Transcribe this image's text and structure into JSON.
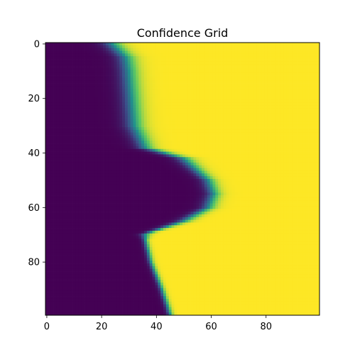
{
  "chart_data": {
    "type": "heatmap",
    "title": "Confidence Grid",
    "xlabel": "",
    "ylabel": "",
    "grid": false,
    "x_ticks": [
      0,
      20,
      40,
      60,
      80
    ],
    "y_ticks": [
      0,
      20,
      40,
      60,
      80
    ],
    "x_range": [
      -0.5,
      99.5
    ],
    "y_range": [
      -0.5,
      99.5
    ],
    "y_inverted": true,
    "value_range": [
      0,
      1
    ],
    "colormap": "viridis",
    "colormap_stops": [
      "#440154",
      "#3b528b",
      "#21918c",
      "#5ec962",
      "#fde725"
    ],
    "boundary": {
      "description": "column index where the field transitions from 0 (dark) to 1 (yellow), per row",
      "rows": [
        0,
        5,
        10,
        20,
        30,
        38,
        42,
        50,
        55,
        60,
        65,
        69,
        70,
        72,
        80,
        90,
        99
      ],
      "x": [
        24,
        29,
        30,
        31,
        32,
        36,
        50,
        59,
        61,
        59,
        50,
        38,
        36,
        36,
        38,
        42,
        45
      ],
      "softness": [
        2.0,
        2.0,
        2.0,
        2.0,
        2.0,
        1.8,
        1.8,
        1.5,
        1.5,
        1.5,
        1.5,
        1.0,
        1.0,
        0.6,
        0.6,
        0.6,
        0.6
      ]
    }
  }
}
